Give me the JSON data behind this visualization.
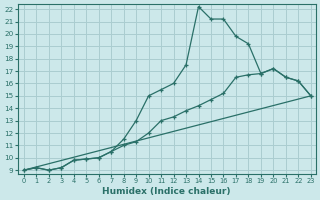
{
  "xlabel": "Humidex (Indice chaleur)",
  "bg_color": "#cce8ea",
  "line_color": "#2a7068",
  "grid_color": "#aacdd0",
  "xlim_min": -0.5,
  "xlim_max": 23.4,
  "ylim_min": 8.7,
  "ylim_max": 22.4,
  "xticks": [
    0,
    1,
    2,
    3,
    4,
    5,
    6,
    7,
    8,
    9,
    10,
    11,
    12,
    13,
    14,
    15,
    16,
    17,
    18,
    19,
    20,
    21,
    22,
    23
  ],
  "yticks": [
    9,
    10,
    11,
    12,
    13,
    14,
    15,
    16,
    17,
    18,
    19,
    20,
    21,
    22
  ],
  "curve1_x": [
    0,
    1,
    2,
    3,
    4,
    5,
    6,
    7,
    8,
    9,
    10,
    11,
    12,
    13,
    14,
    15,
    16,
    17,
    18,
    19,
    20,
    21,
    22,
    23
  ],
  "curve1_y": [
    9.0,
    9.2,
    9.0,
    9.2,
    9.8,
    9.9,
    10.0,
    10.5,
    11.5,
    13.0,
    15.0,
    15.5,
    16.0,
    17.5,
    22.2,
    21.2,
    21.2,
    19.8,
    19.2,
    16.8,
    17.2,
    16.5,
    16.2,
    15.0
  ],
  "curve2_x": [
    0,
    1,
    2,
    3,
    4,
    5,
    6,
    7,
    8,
    9,
    10,
    11,
    12,
    13,
    14,
    15,
    16,
    17,
    18,
    19,
    20,
    21,
    22,
    23
  ],
  "curve2_y": [
    9.0,
    9.2,
    9.0,
    9.2,
    9.8,
    9.9,
    10.0,
    10.5,
    11.0,
    11.3,
    12.0,
    13.0,
    13.3,
    13.8,
    14.2,
    14.7,
    15.2,
    16.5,
    16.7,
    16.8,
    17.2,
    16.5,
    16.2,
    15.0
  ],
  "line3_x": [
    0,
    23
  ],
  "line3_y": [
    9.0,
    15.0
  ]
}
